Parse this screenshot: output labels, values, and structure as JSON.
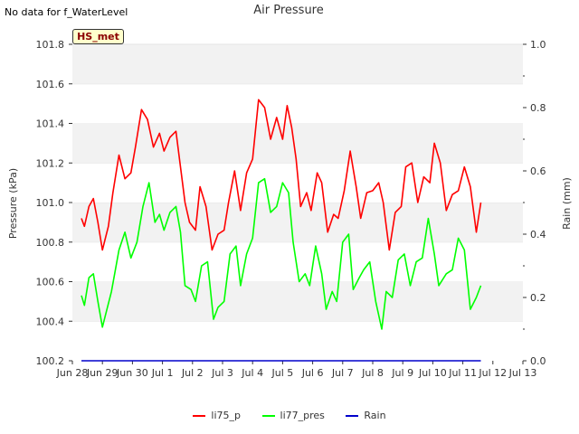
{
  "header": {
    "no_data_note": "No data for f_WaterLevel"
  },
  "badge": {
    "label": "HS_met"
  },
  "chart_data": {
    "type": "line",
    "title": "Air Pressure",
    "ylabel": "Pressure (kPa)",
    "y2label": "Rain (mm)",
    "ylim": [
      100.2,
      101.8
    ],
    "y2lim": [
      0.0,
      1.0
    ],
    "xlim": [
      0,
      15
    ],
    "x_ticks": [
      0,
      1,
      2,
      3,
      4,
      5,
      6,
      7,
      8,
      9,
      10,
      11,
      12,
      13,
      14,
      15
    ],
    "x_tick_labels": [
      "Jun 28",
      "Jun 29",
      "Jun 30",
      "Jul 1",
      "Jul 2",
      "Jul 3",
      "Jul 4",
      "Jul 5",
      "Jul 6",
      "Jul 7",
      "Jul 8",
      "Jul 9",
      "Jul 10",
      "Jul 11",
      "Jul 12",
      "Jul 13"
    ],
    "y_ticks": [
      100.2,
      100.4,
      100.6,
      100.8,
      101.0,
      101.2,
      101.4,
      101.6,
      101.8
    ],
    "y_tick_labels": [
      "100.2",
      "100.4",
      "100.6",
      "100.8",
      "101.0",
      "101.2",
      "101.4",
      "101.6",
      "101.8"
    ],
    "y2_ticks": [
      0.0,
      0.2,
      0.4,
      0.6,
      0.8,
      1.0
    ],
    "y2_tick_labels": [
      "0.0",
      "0.2",
      "0.4",
      "0.6",
      "0.8",
      "1.0"
    ],
    "grid": "horizontal bands",
    "legend_position": "bottom",
    "series": [
      {
        "name": "li75_p",
        "color": "#ff0000",
        "axis": "left",
        "x": [
          0.3,
          0.4,
          0.55,
          0.7,
          0.85,
          1.0,
          1.2,
          1.35,
          1.55,
          1.75,
          1.95,
          2.1,
          2.3,
          2.5,
          2.7,
          2.9,
          3.05,
          3.25,
          3.45,
          3.6,
          3.75,
          3.9,
          4.1,
          4.25,
          4.45,
          4.65,
          4.85,
          5.05,
          5.2,
          5.4,
          5.6,
          5.8,
          6.0,
          6.2,
          6.4,
          6.6,
          6.8,
          7.0,
          7.15,
          7.3,
          7.45,
          7.6,
          7.8,
          7.95,
          8.15,
          8.3,
          8.5,
          8.7,
          8.85,
          9.05,
          9.25,
          9.45,
          9.6,
          9.8,
          10.0,
          10.2,
          10.35,
          10.55,
          10.75,
          10.95,
          11.1,
          11.3,
          11.5,
          11.7,
          11.9,
          12.05,
          12.25,
          12.45,
          12.65,
          12.85,
          13.05,
          13.25,
          13.45,
          13.6
        ],
        "values": [
          100.92,
          100.88,
          100.98,
          101.02,
          100.9,
          100.76,
          100.88,
          101.05,
          101.24,
          101.12,
          101.15,
          101.28,
          101.47,
          101.42,
          101.28,
          101.35,
          101.26,
          101.33,
          101.36,
          101.18,
          101.0,
          100.9,
          100.86,
          101.08,
          100.98,
          100.76,
          100.84,
          100.86,
          101.0,
          101.16,
          100.96,
          101.15,
          101.22,
          101.52,
          101.48,
          101.32,
          101.43,
          101.32,
          101.49,
          101.38,
          101.22,
          100.98,
          101.05,
          100.96,
          101.15,
          101.1,
          100.85,
          100.94,
          100.92,
          101.06,
          101.26,
          101.08,
          100.92,
          101.05,
          101.06,
          101.1,
          101.0,
          100.76,
          100.95,
          100.98,
          101.18,
          101.2,
          101.0,
          101.13,
          101.1,
          101.3,
          101.2,
          100.96,
          101.04,
          101.06,
          101.18,
          101.08,
          100.85,
          101.0
        ]
      },
      {
        "name": "li77_pres",
        "color": "#00ff00",
        "axis": "left",
        "x": [
          0.3,
          0.4,
          0.55,
          0.7,
          0.85,
          1.0,
          1.15,
          1.3,
          1.55,
          1.75,
          1.95,
          2.15,
          2.35,
          2.55,
          2.75,
          2.9,
          3.05,
          3.25,
          3.45,
          3.6,
          3.75,
          3.95,
          4.1,
          4.3,
          4.5,
          4.7,
          4.85,
          5.05,
          5.25,
          5.45,
          5.6,
          5.8,
          6.0,
          6.2,
          6.4,
          6.6,
          6.8,
          7.0,
          7.2,
          7.35,
          7.55,
          7.75,
          7.9,
          8.1,
          8.3,
          8.45,
          8.65,
          8.8,
          9.0,
          9.2,
          9.35,
          9.55,
          9.7,
          9.9,
          10.1,
          10.3,
          10.45,
          10.65,
          10.85,
          11.05,
          11.25,
          11.45,
          11.65,
          11.85,
          12.05,
          12.2,
          12.45,
          12.65,
          12.85,
          13.05,
          13.25,
          13.45,
          13.6
        ],
        "values": [
          100.53,
          100.48,
          100.62,
          100.64,
          100.5,
          100.37,
          100.46,
          100.55,
          100.76,
          100.85,
          100.72,
          100.8,
          100.98,
          101.1,
          100.9,
          100.94,
          100.86,
          100.95,
          100.98,
          100.85,
          100.58,
          100.56,
          100.5,
          100.68,
          100.7,
          100.41,
          100.47,
          100.5,
          100.74,
          100.78,
          100.58,
          100.74,
          100.82,
          101.1,
          101.12,
          100.95,
          100.98,
          101.1,
          101.05,
          100.8,
          100.6,
          100.64,
          100.58,
          100.78,
          100.64,
          100.46,
          100.55,
          100.5,
          100.8,
          100.84,
          100.56,
          100.62,
          100.66,
          100.7,
          100.5,
          100.36,
          100.55,
          100.52,
          100.71,
          100.74,
          100.58,
          100.7,
          100.72,
          100.92,
          100.74,
          100.58,
          100.64,
          100.66,
          100.82,
          100.76,
          100.46,
          100.52,
          100.58
        ]
      },
      {
        "name": "Rain",
        "color": "#0000cc",
        "axis": "right",
        "x": [
          0.3,
          13.6
        ],
        "values": [
          0.0,
          0.0
        ]
      }
    ]
  }
}
